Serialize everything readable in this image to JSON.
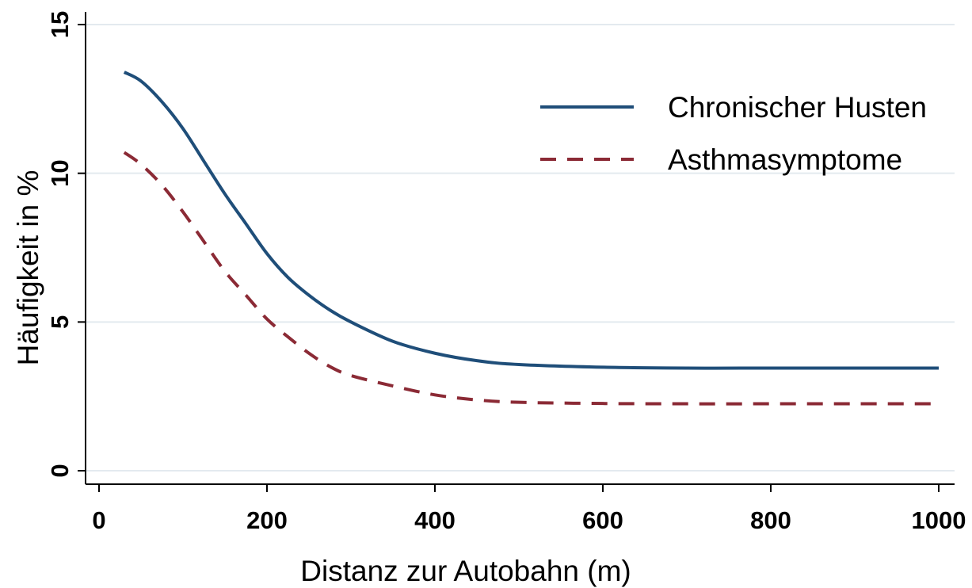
{
  "chart_data": {
    "type": "line",
    "xlabel": "Distanz zur Autobahn (m)",
    "ylabel": "Häufigkeit in %",
    "xlim": [
      0,
      1000
    ],
    "ylim": [
      0,
      15
    ],
    "xticks": [
      "0",
      "200",
      "400",
      "600",
      "800",
      "1000"
    ],
    "yticks": [
      "0",
      "5",
      "10",
      "15"
    ],
    "grid": true,
    "legend_position": "top-right",
    "series": [
      {
        "name": "Chronischer Husten",
        "color": "#1f4e79",
        "style": "solid",
        "x": [
          30,
          50,
          75,
          100,
          125,
          150,
          175,
          200,
          225,
          250,
          275,
          300,
          350,
          400,
          450,
          500,
          600,
          700,
          800,
          900,
          1000
        ],
        "y": [
          13.4,
          13.1,
          12.4,
          11.5,
          10.4,
          9.3,
          8.3,
          7.3,
          6.5,
          5.9,
          5.4,
          5.0,
          4.35,
          3.95,
          3.7,
          3.57,
          3.48,
          3.45,
          3.45,
          3.45,
          3.45
        ]
      },
      {
        "name": "Asthmasymptome",
        "color": "#8b2a35",
        "style": "dashed",
        "x": [
          30,
          50,
          75,
          100,
          125,
          150,
          175,
          200,
          225,
          250,
          275,
          300,
          350,
          400,
          450,
          500,
          600,
          700,
          800,
          900,
          1000
        ],
        "y": [
          10.7,
          10.3,
          9.6,
          8.7,
          7.7,
          6.7,
          5.9,
          5.1,
          4.5,
          3.95,
          3.5,
          3.2,
          2.85,
          2.55,
          2.38,
          2.3,
          2.26,
          2.25,
          2.25,
          2.25,
          2.25
        ]
      }
    ]
  }
}
